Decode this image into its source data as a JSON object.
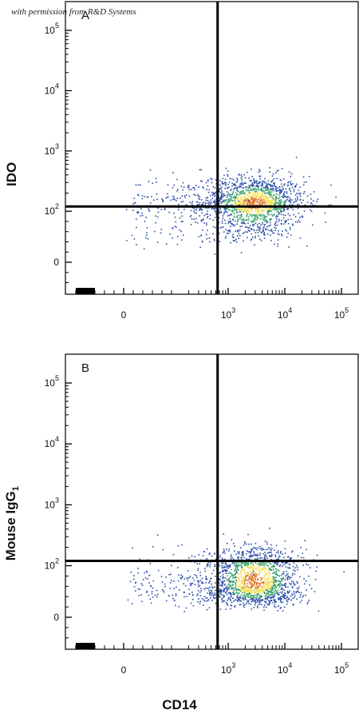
{
  "watermark": "with permission from R&D Systems",
  "chart_data": [
    {
      "type": "scatter",
      "panel_label": "A",
      "xlabel": "CD14",
      "ylabel": "IDO",
      "ylabel_sub": "",
      "x_scale": "biexponential",
      "y_scale": "biexponential",
      "x_ticks": [
        "0",
        "10^3",
        "10^4",
        "10^5"
      ],
      "y_ticks": [
        "0",
        "10^2",
        "10^3",
        "10^4",
        "10^5"
      ],
      "quadrant_gate": {
        "x": 650,
        "y": 120
      },
      "populations": [
        {
          "name": "main",
          "x_center_log10": 3.45,
          "y_center_log10": 2.15,
          "x_spread": 0.45,
          "y_spread": 0.22,
          "n": 1500
        },
        {
          "name": "dim",
          "x_center_log10": 2.2,
          "y_center_log10": 2.1,
          "x_spread": 0.5,
          "y_spread": 0.25,
          "n": 220
        }
      ],
      "grid": false
    },
    {
      "type": "scatter",
      "panel_label": "B",
      "xlabel": "CD14",
      "ylabel": "Mouse IgG",
      "ylabel_sub": "1",
      "x_scale": "biexponential",
      "y_scale": "biexponential",
      "x_ticks": [
        "0",
        "10^3",
        "10^4",
        "10^5"
      ],
      "y_ticks": [
        "0",
        "10^2",
        "10^3",
        "10^4",
        "10^5"
      ],
      "quadrant_gate": {
        "x": 650,
        "y": 120
      },
      "populations": [
        {
          "name": "main",
          "x_center_log10": 3.45,
          "y_center_log10": 1.85,
          "x_spread": 0.42,
          "y_spread": 0.22,
          "n": 1500
        },
        {
          "name": "dim",
          "x_center_log10": 2.2,
          "y_center_log10": 1.85,
          "x_spread": 0.5,
          "y_spread": 0.22,
          "n": 200
        }
      ],
      "grid": false
    }
  ],
  "colors": {
    "axis": "#111111",
    "density_low": "#2b4ea8",
    "density_mid": "#3aa36a",
    "density_high": "#f2e15a",
    "density_max": "#e07a2a"
  }
}
